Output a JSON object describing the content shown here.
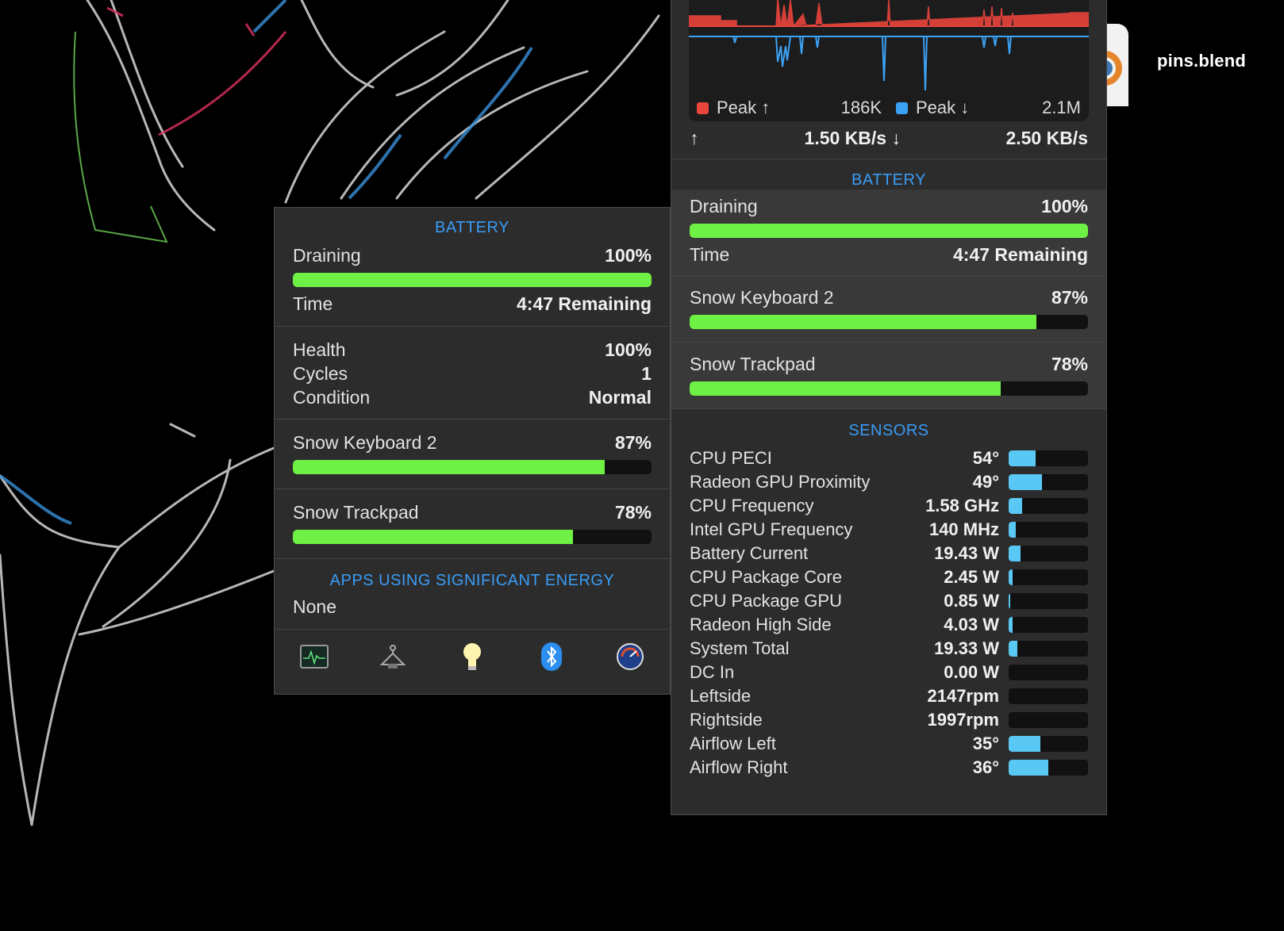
{
  "desktop": {
    "file_name": "pins.blend"
  },
  "left_panel": {
    "battery_title": "BATTERY",
    "draining_label": "Draining",
    "draining_value": "100%",
    "draining_fraction": 1.0,
    "time_label": "Time",
    "time_value": "4:47 Remaining",
    "health_label": "Health",
    "health_value": "100%",
    "cycles_label": "Cycles",
    "cycles_value": "1",
    "condition_label": "Condition",
    "condition_value": "Normal",
    "keyboard_label": "Snow Keyboard 2",
    "keyboard_value": "87%",
    "keyboard_fraction": 0.87,
    "trackpad_label": "Snow Trackpad",
    "trackpad_value": "78%",
    "trackpad_fraction": 0.78,
    "apps_title": "APPS USING SIGNIFICANT ENERGY",
    "apps_value": "None",
    "toolbar_icons": [
      "activity-monitor-icon",
      "hanger-icon",
      "lightbulb-icon",
      "bluetooth-icon",
      "istat-icon"
    ]
  },
  "right_panel": {
    "network": {
      "peak_up_label": "Peak ↑",
      "peak_up_value": "186K",
      "peak_down_label": "Peak ↓",
      "peak_down_value": "2.1M",
      "up_arrow": "↑",
      "up_rate": "1.50 KB/s ↓",
      "down_rate": "2.50 KB/s",
      "up_color": "#e8453c",
      "down_color": "#3ba1f3"
    },
    "battery_title": "BATTERY",
    "draining_label": "Draining",
    "draining_value": "100%",
    "draining_fraction": 1.0,
    "time_label": "Time",
    "time_value": "4:47 Remaining",
    "keyboard_label": "Snow Keyboard 2",
    "keyboard_value": "87%",
    "keyboard_fraction": 0.87,
    "trackpad_label": "Snow Trackpad",
    "trackpad_value": "78%",
    "trackpad_fraction": 0.78,
    "sensors_title": "SENSORS",
    "sensors": [
      {
        "label": "CPU PECI",
        "value": "54°",
        "fraction": 0.34
      },
      {
        "label": "Radeon GPU Proximity",
        "value": "49°",
        "fraction": 0.42
      },
      {
        "label": "CPU Frequency",
        "value": "1.58 GHz",
        "fraction": 0.17
      },
      {
        "label": "Intel GPU Frequency",
        "value": "140 MHz",
        "fraction": 0.09
      },
      {
        "label": "Battery Current",
        "value": "19.43 W",
        "fraction": 0.15
      },
      {
        "label": "CPU Package Core",
        "value": "2.45 W",
        "fraction": 0.05
      },
      {
        "label": "CPU Package GPU",
        "value": "0.85 W",
        "fraction": 0.02
      },
      {
        "label": "Radeon High Side",
        "value": "4.03 W",
        "fraction": 0.05
      },
      {
        "label": "System Total",
        "value": "19.33 W",
        "fraction": 0.11
      },
      {
        "label": "DC In",
        "value": "0.00 W",
        "fraction": 0.0
      },
      {
        "label": "Leftside",
        "value": "2147rpm",
        "fraction": 0.0
      },
      {
        "label": "Rightside",
        "value": "1997rpm",
        "fraction": 0.0
      },
      {
        "label": "Airflow Left",
        "value": "35°",
        "fraction": 0.4
      },
      {
        "label": "Airflow Right",
        "value": "36°",
        "fraction": 0.5
      }
    ],
    "sensor_bar_color": "#5ac8f5"
  }
}
